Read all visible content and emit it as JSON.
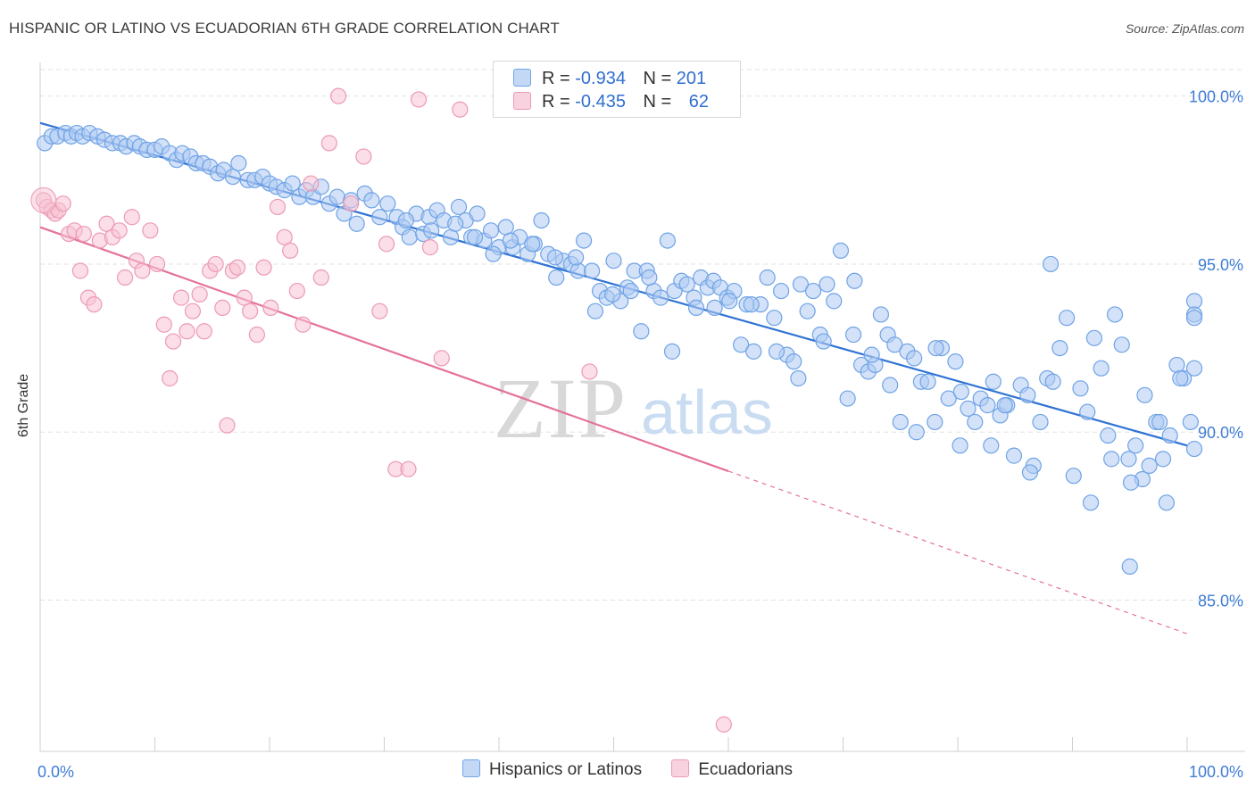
{
  "title": "HISPANIC OR LATINO VS ECUADORIAN 6TH GRADE CORRELATION CHART",
  "source": "Source: ZipAtlas.com",
  "watermark": {
    "zip": "ZIP",
    "atlas": "atlas"
  },
  "legend_top": {
    "rows": [
      {
        "r_label": "R =",
        "r_value": "-0.934",
        "n_label": "N =",
        "n_value": "201"
      },
      {
        "r_label": "R =",
        "r_value": "-0.435",
        "n_label": "N =",
        "n_value": "62"
      }
    ]
  },
  "chart_data": {
    "type": "scatter",
    "title": "HISPANIC OR LATINO VS ECUADORIAN 6TH GRADE CORRELATION CHART",
    "xlabel": "",
    "ylabel": "6th Grade",
    "xlim": [
      0,
      100
    ],
    "ylim": [
      80.5,
      101.0
    ],
    "x_tick_labels": [
      "0.0%",
      "100.0%"
    ],
    "y_ticks": [
      85,
      90,
      95,
      100
    ],
    "y_tick_labels": [
      "85.0%",
      "90.0%",
      "95.0%",
      "100.0%"
    ],
    "grid": true,
    "legend_position": "bottom",
    "series": [
      {
        "name": "Hispanics or Latinos",
        "color": "#6fa3e6",
        "fill": "#aecbf3",
        "r": -0.934,
        "n": 201,
        "trend": {
          "x0": 0,
          "y0": 99.2,
          "x1": 100,
          "y1": 89.6,
          "dashed_from": null
        },
        "points": [
          [
            0.4,
            98.6
          ],
          [
            1.0,
            98.8
          ],
          [
            1.5,
            98.8
          ],
          [
            2.2,
            98.9
          ],
          [
            2.7,
            98.8
          ],
          [
            3.2,
            98.9
          ],
          [
            3.7,
            98.8
          ],
          [
            4.3,
            98.9
          ],
          [
            5.0,
            98.8
          ],
          [
            5.6,
            98.7
          ],
          [
            6.3,
            98.6
          ],
          [
            7.0,
            98.6
          ],
          [
            7.5,
            98.5
          ],
          [
            8.2,
            98.6
          ],
          [
            8.7,
            98.5
          ],
          [
            9.3,
            98.4
          ],
          [
            10.0,
            98.4
          ],
          [
            10.6,
            98.5
          ],
          [
            11.3,
            98.3
          ],
          [
            11.9,
            98.1
          ],
          [
            12.4,
            98.3
          ],
          [
            13.1,
            98.2
          ],
          [
            13.6,
            98.0
          ],
          [
            14.2,
            98.0
          ],
          [
            14.8,
            97.9
          ],
          [
            15.5,
            97.7
          ],
          [
            16.0,
            97.8
          ],
          [
            16.8,
            97.6
          ],
          [
            17.3,
            98.0
          ],
          [
            18.1,
            97.5
          ],
          [
            18.7,
            97.5
          ],
          [
            19.4,
            97.6
          ],
          [
            20.0,
            97.4
          ],
          [
            20.6,
            97.3
          ],
          [
            21.3,
            97.2
          ],
          [
            22.0,
            97.4
          ],
          [
            22.6,
            97.0
          ],
          [
            23.2,
            97.2
          ],
          [
            23.8,
            97.0
          ],
          [
            24.5,
            97.3
          ],
          [
            25.2,
            96.8
          ],
          [
            25.9,
            97.0
          ],
          [
            26.5,
            96.5
          ],
          [
            27.1,
            96.9
          ],
          [
            27.6,
            96.2
          ],
          [
            28.3,
            97.1
          ],
          [
            28.9,
            96.9
          ],
          [
            29.6,
            96.4
          ],
          [
            30.3,
            96.8
          ],
          [
            31.1,
            96.4
          ],
          [
            31.6,
            96.1
          ],
          [
            32.2,
            95.8
          ],
          [
            32.8,
            96.5
          ],
          [
            33.4,
            95.9
          ],
          [
            33.9,
            96.4
          ],
          [
            34.6,
            96.6
          ],
          [
            35.2,
            96.3
          ],
          [
            35.8,
            95.8
          ],
          [
            36.5,
            96.7
          ],
          [
            37.1,
            96.3
          ],
          [
            37.6,
            95.8
          ],
          [
            38.1,
            96.5
          ],
          [
            38.7,
            95.7
          ],
          [
            39.3,
            96.0
          ],
          [
            40.0,
            95.5
          ],
          [
            40.6,
            96.1
          ],
          [
            41.2,
            95.5
          ],
          [
            41.8,
            95.8
          ],
          [
            42.5,
            95.3
          ],
          [
            43.1,
            95.6
          ],
          [
            43.7,
            96.3
          ],
          [
            44.3,
            95.3
          ],
          [
            45.0,
            94.6
          ],
          [
            45.6,
            95.1
          ],
          [
            46.3,
            95.0
          ],
          [
            46.9,
            94.8
          ],
          [
            47.4,
            95.7
          ],
          [
            48.1,
            94.8
          ],
          [
            48.8,
            94.2
          ],
          [
            49.4,
            94.0
          ],
          [
            50.0,
            95.1
          ],
          [
            50.6,
            93.9
          ],
          [
            51.2,
            94.3
          ],
          [
            51.8,
            94.8
          ],
          [
            52.4,
            93.0
          ],
          [
            52.9,
            94.8
          ],
          [
            53.5,
            94.2
          ],
          [
            54.1,
            94.0
          ],
          [
            54.7,
            95.7
          ],
          [
            55.3,
            94.2
          ],
          [
            55.9,
            94.5
          ],
          [
            56.4,
            94.4
          ],
          [
            57.0,
            94.0
          ],
          [
            57.6,
            94.6
          ],
          [
            58.2,
            94.3
          ],
          [
            58.7,
            94.5
          ],
          [
            59.3,
            94.3
          ],
          [
            59.9,
            94.0
          ],
          [
            60.5,
            94.2
          ],
          [
            61.1,
            92.6
          ],
          [
            61.6,
            93.8
          ],
          [
            62.2,
            92.4
          ],
          [
            62.8,
            93.8
          ],
          [
            63.4,
            94.6
          ],
          [
            64.0,
            93.4
          ],
          [
            64.6,
            94.2
          ],
          [
            65.1,
            92.3
          ],
          [
            65.7,
            92.1
          ],
          [
            66.3,
            94.4
          ],
          [
            66.9,
            93.6
          ],
          [
            67.4,
            94.2
          ],
          [
            68.0,
            92.9
          ],
          [
            68.6,
            94.4
          ],
          [
            69.2,
            93.9
          ],
          [
            69.8,
            95.4
          ],
          [
            70.4,
            91.0
          ],
          [
            71.0,
            94.5
          ],
          [
            71.6,
            92.0
          ],
          [
            72.2,
            91.8
          ],
          [
            72.8,
            92.0
          ],
          [
            73.3,
            93.5
          ],
          [
            73.9,
            92.9
          ],
          [
            74.5,
            92.6
          ],
          [
            75.0,
            90.3
          ],
          [
            75.6,
            92.4
          ],
          [
            76.2,
            92.2
          ],
          [
            76.8,
            91.5
          ],
          [
            77.4,
            91.5
          ],
          [
            78.0,
            90.3
          ],
          [
            78.6,
            92.5
          ],
          [
            79.2,
            91.0
          ],
          [
            79.8,
            92.1
          ],
          [
            80.3,
            91.2
          ],
          [
            80.9,
            90.7
          ],
          [
            81.5,
            90.3
          ],
          [
            82.0,
            91.0
          ],
          [
            82.6,
            90.8
          ],
          [
            83.1,
            91.5
          ],
          [
            83.7,
            90.5
          ],
          [
            84.3,
            90.8
          ],
          [
            84.9,
            89.3
          ],
          [
            85.5,
            91.4
          ],
          [
            86.1,
            91.1
          ],
          [
            86.6,
            89.0
          ],
          [
            87.2,
            90.3
          ],
          [
            87.8,
            91.6
          ],
          [
            88.3,
            91.5
          ],
          [
            88.9,
            92.5
          ],
          [
            89.5,
            93.4
          ],
          [
            90.1,
            88.7
          ],
          [
            90.7,
            91.3
          ],
          [
            91.3,
            90.6
          ],
          [
            91.9,
            92.8
          ],
          [
            92.5,
            91.9
          ],
          [
            93.1,
            89.9
          ],
          [
            93.7,
            93.5
          ],
          [
            94.3,
            92.6
          ],
          [
            94.9,
            89.2
          ],
          [
            95.5,
            89.6
          ],
          [
            96.1,
            88.6
          ],
          [
            96.7,
            89.0
          ],
          [
            97.3,
            90.3
          ],
          [
            97.9,
            89.2
          ],
          [
            98.5,
            89.9
          ],
          [
            99.1,
            92.0
          ],
          [
            99.7,
            91.6
          ],
          [
            100.3,
            90.3
          ],
          [
            100.9,
            93.9
          ],
          [
            101.5,
            91.9
          ],
          [
            102.1,
            89.5
          ],
          [
            102.7,
            93.5
          ],
          [
            95.1,
            88.5
          ],
          [
            96.3,
            91.1
          ],
          [
            97.6,
            90.3
          ],
          [
            98.2,
            87.9
          ],
          [
            99.4,
            91.6
          ],
          [
            100.8,
            93.4
          ],
          [
            91.6,
            87.9
          ],
          [
            93.4,
            89.2
          ],
          [
            88.1,
            95.0
          ],
          [
            86.3,
            88.8
          ],
          [
            84.1,
            90.8
          ],
          [
            82.9,
            89.6
          ],
          [
            80.2,
            89.6
          ],
          [
            78.1,
            92.5
          ],
          [
            76.4,
            90.0
          ],
          [
            74.1,
            91.4
          ],
          [
            72.5,
            92.3
          ],
          [
            70.9,
            92.9
          ],
          [
            68.3,
            92.7
          ],
          [
            66.1,
            91.6
          ],
          [
            64.2,
            92.4
          ],
          [
            62.0,
            93.8
          ],
          [
            60.1,
            93.9
          ],
          [
            58.8,
            93.7
          ],
          [
            57.2,
            93.7
          ],
          [
            55.1,
            92.4
          ],
          [
            53.1,
            94.6
          ],
          [
            51.5,
            94.2
          ],
          [
            49.9,
            94.1
          ],
          [
            48.4,
            93.6
          ],
          [
            46.7,
            95.2
          ],
          [
            44.9,
            95.2
          ],
          [
            42.9,
            95.6
          ],
          [
            41.0,
            95.7
          ],
          [
            39.5,
            95.3
          ],
          [
            37.9,
            95.8
          ],
          [
            36.2,
            96.2
          ],
          [
            34.1,
            96.0
          ],
          [
            31.9,
            96.3
          ],
          [
            95.0,
            86.0
          ]
        ]
      },
      {
        "name": "Ecuadorians",
        "color": "#ec9ab5",
        "fill": "#f7c3d4",
        "r": -0.435,
        "n": 62,
        "trend": {
          "x0": 0,
          "y0": 96.1,
          "x1": 100,
          "y1": 84.0,
          "solid_until_x": 60
        },
        "points": [
          [
            0.3,
            96.9
          ],
          [
            0.6,
            96.7
          ],
          [
            1.0,
            96.6
          ],
          [
            1.3,
            96.5
          ],
          [
            1.6,
            96.6
          ],
          [
            2.0,
            96.8
          ],
          [
            2.5,
            95.9
          ],
          [
            3.0,
            96.0
          ],
          [
            3.5,
            94.8
          ],
          [
            3.8,
            95.9
          ],
          [
            4.2,
            94.0
          ],
          [
            4.7,
            93.8
          ],
          [
            5.2,
            95.7
          ],
          [
            5.8,
            96.2
          ],
          [
            6.3,
            95.8
          ],
          [
            6.9,
            96.0
          ],
          [
            7.4,
            94.6
          ],
          [
            8.0,
            96.4
          ],
          [
            8.4,
            95.1
          ],
          [
            8.9,
            94.8
          ],
          [
            9.6,
            96.0
          ],
          [
            10.2,
            95.0
          ],
          [
            10.8,
            93.2
          ],
          [
            11.3,
            91.6
          ],
          [
            11.6,
            92.7
          ],
          [
            12.3,
            94.0
          ],
          [
            12.8,
            93.0
          ],
          [
            13.3,
            93.6
          ],
          [
            13.9,
            94.1
          ],
          [
            14.3,
            93.0
          ],
          [
            14.8,
            94.8
          ],
          [
            15.3,
            95.0
          ],
          [
            15.9,
            93.7
          ],
          [
            16.3,
            90.2
          ],
          [
            16.8,
            94.8
          ],
          [
            17.2,
            94.9
          ],
          [
            17.8,
            94.0
          ],
          [
            18.3,
            93.6
          ],
          [
            18.9,
            92.9
          ],
          [
            19.5,
            94.9
          ],
          [
            20.1,
            93.7
          ],
          [
            20.7,
            96.7
          ],
          [
            21.3,
            95.8
          ],
          [
            21.8,
            95.4
          ],
          [
            22.4,
            94.2
          ],
          [
            22.9,
            93.2
          ],
          [
            23.6,
            97.4
          ],
          [
            24.5,
            94.6
          ],
          [
            25.2,
            98.6
          ],
          [
            26.0,
            100.0
          ],
          [
            27.1,
            96.8
          ],
          [
            28.2,
            98.2
          ],
          [
            29.6,
            93.6
          ],
          [
            30.2,
            95.6
          ],
          [
            31.0,
            88.9
          ],
          [
            32.1,
            88.9
          ],
          [
            33.0,
            99.9
          ],
          [
            34.0,
            95.5
          ],
          [
            35.0,
            92.2
          ],
          [
            36.6,
            99.6
          ],
          [
            47.9,
            91.8
          ],
          [
            59.6,
            81.3
          ]
        ]
      }
    ]
  }
}
